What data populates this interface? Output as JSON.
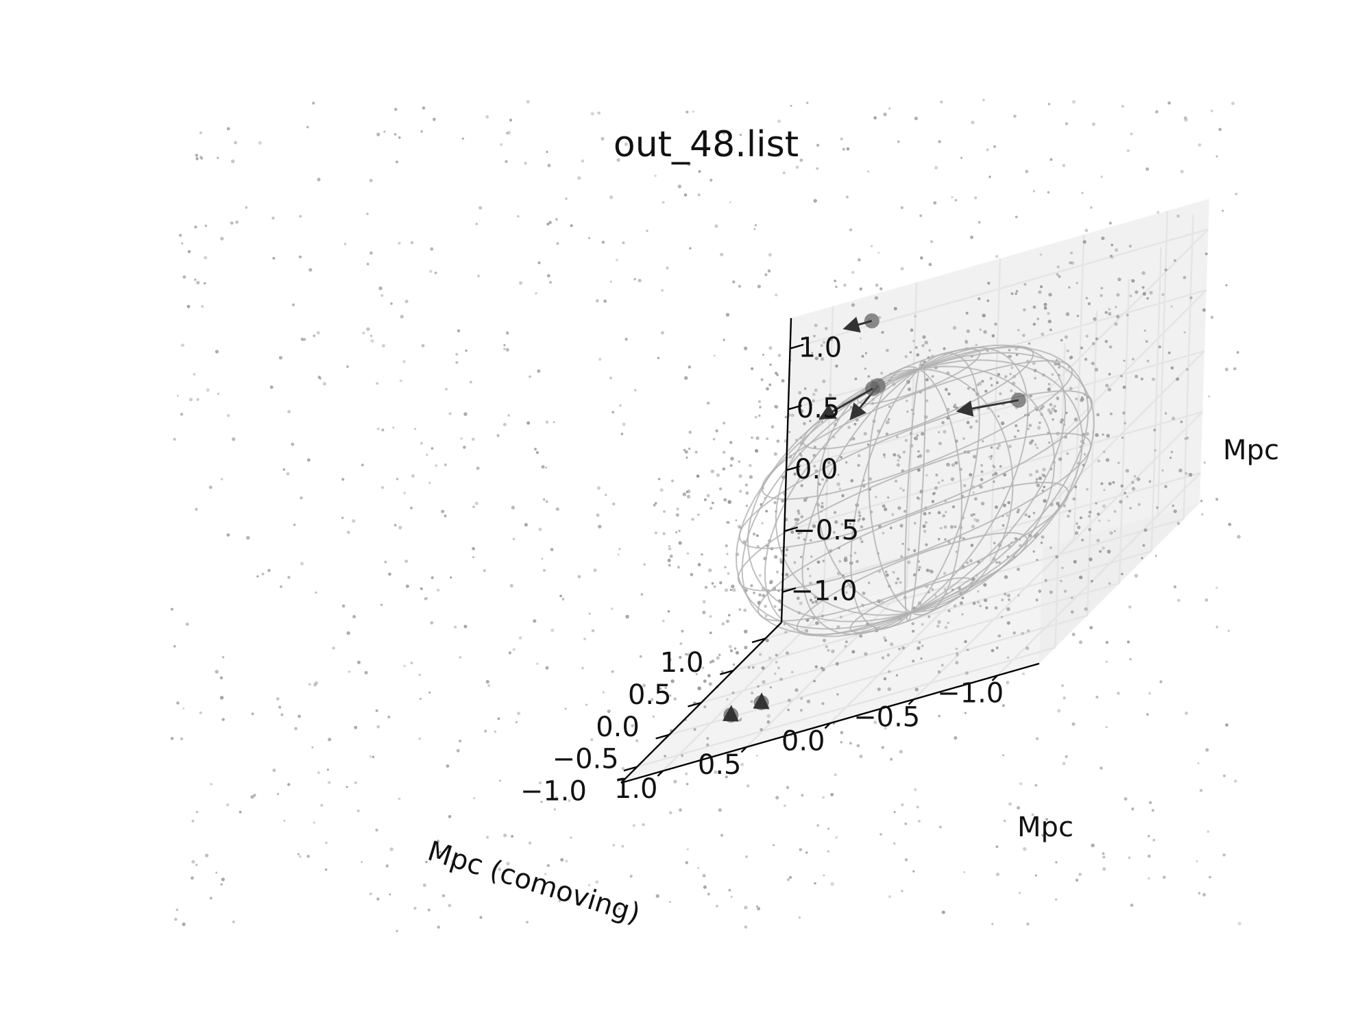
{
  "chart_data": {
    "type": "scatter",
    "title": "out_48.list",
    "xlabel": "Mpc (comoving)",
    "ylabel": "Mpc",
    "zlabel": "Mpc",
    "xlim": [
      -1.25,
      1.25
    ],
    "ylim": [
      -1.25,
      1.25
    ],
    "zlim": [
      -1.25,
      1.25
    ],
    "xticks": [
      "−1.0",
      "−0.5",
      "0.0",
      "0.5",
      "1.0"
    ],
    "yticks": [
      "−1.0",
      "−0.5",
      "0.0",
      "0.5",
      "1.0"
    ],
    "zticks": [
      "−1.0",
      "−0.5",
      "0.0",
      "0.5",
      "1.0"
    ],
    "grid": true,
    "sphere_wireframe": {
      "radius": 1.0,
      "center": [
        0,
        0,
        0
      ],
      "color": "#b0b0b0"
    },
    "colors": {
      "pane": "#f2f2f2",
      "grid": "#e4e4e4",
      "particles": "#9a9a9a",
      "halos": "#666666",
      "arrows": "#333333"
    },
    "halos": [
      {
        "x": -0.55,
        "y": 0.15,
        "z": 0.45,
        "vx": 0.35,
        "vy": 0.0,
        "vz": 0.05
      },
      {
        "x": 0.45,
        "y": 0.55,
        "z": 0.75,
        "vx": 0.15,
        "vy": 0.0,
        "vz": -0.2
      },
      {
        "x": 0.5,
        "y": 0.6,
        "z": 0.72,
        "vx": 0.3,
        "vy": 0.0,
        "vz": -0.12
      },
      {
        "x": 0.65,
        "y": 0.95,
        "z": 1.15,
        "vx": 0.15,
        "vy": 0.0,
        "vz": 0.0
      },
      {
        "x": 0.55,
        "y": -0.9,
        "z": -1.05,
        "vx": 0.0,
        "vy": 0.0,
        "vz": 0.05
      },
      {
        "x": 0.75,
        "y": -0.85,
        "z": -1.1,
        "vx": 0.0,
        "vy": 0.0,
        "vz": 0.05
      }
    ]
  }
}
